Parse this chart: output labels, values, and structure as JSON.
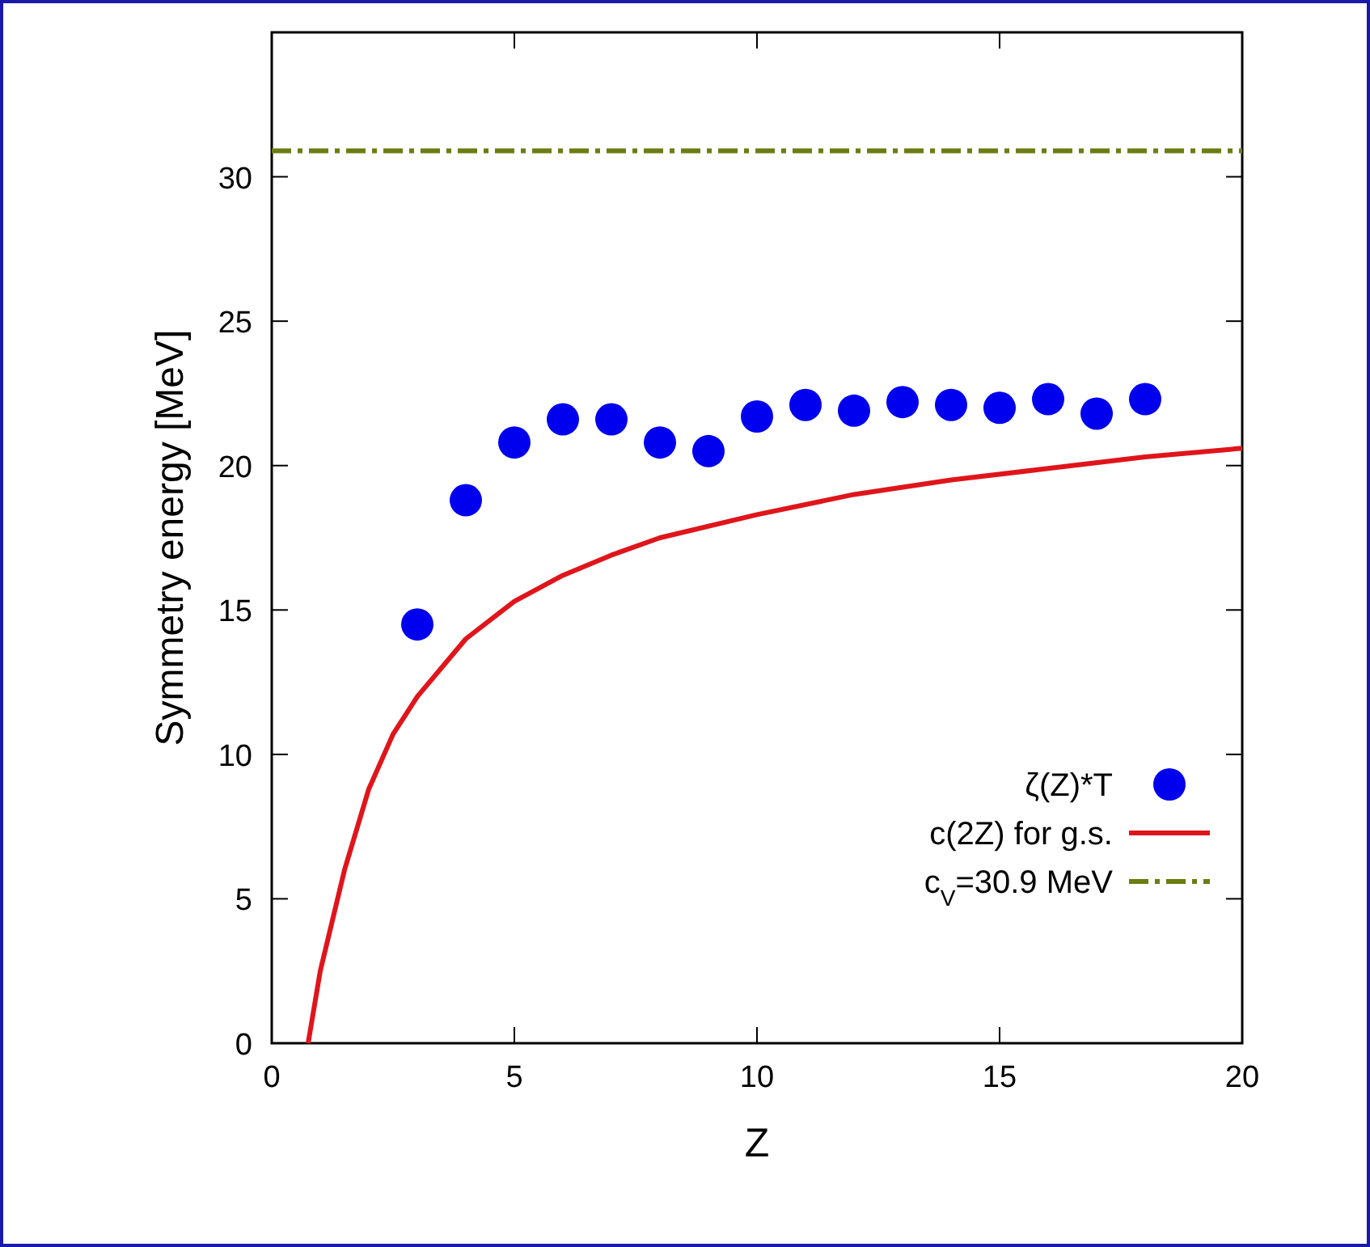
{
  "chart_data": {
    "type": "scatter",
    "xlabel": "Z",
    "ylabel": "Symmetry energy [MeV]",
    "xlim": [
      0,
      20
    ],
    "ylim": [
      0,
      35
    ],
    "xticks": [
      0,
      5,
      10,
      15,
      20
    ],
    "yticks": [
      0,
      5,
      10,
      15,
      20,
      25,
      30
    ],
    "grid": false,
    "legend": "bottom right",
    "series": [
      {
        "name": "ζ(Z)*T",
        "color": "#0000ee",
        "marker": "circle",
        "x": [
          3,
          4,
          5,
          6,
          7,
          8,
          9,
          10,
          11,
          12,
          13,
          14,
          15,
          16,
          17,
          18
        ],
        "values": [
          14.5,
          18.8,
          20.8,
          21.6,
          21.6,
          20.8,
          20.5,
          21.7,
          22.1,
          21.9,
          22.2,
          22.1,
          22.0,
          22.3,
          21.8,
          22.3
        ]
      },
      {
        "name": "c(2Z) for g.s.",
        "type": "line",
        "color": "#e0151b",
        "marker": "none",
        "line_style": "solid",
        "x": [
          0.75,
          1,
          1.5,
          2,
          2.5,
          3,
          4,
          5,
          6,
          7,
          8,
          10,
          12,
          14,
          16,
          18,
          20
        ],
        "values": [
          0,
          2.5,
          6,
          8.8,
          10.7,
          12,
          14,
          15.3,
          16.2,
          16.9,
          17.5,
          18.3,
          19,
          19.5,
          19.9,
          20.3,
          20.6
        ]
      },
      {
        "name": "c$_{V}$=30.9 MeV",
        "type": "line",
        "color": "#6b7d12",
        "marker": "none",
        "line_style": "dashed",
        "x": [
          0,
          20
        ],
        "values": [
          30.9,
          30.9
        ]
      }
    ]
  }
}
